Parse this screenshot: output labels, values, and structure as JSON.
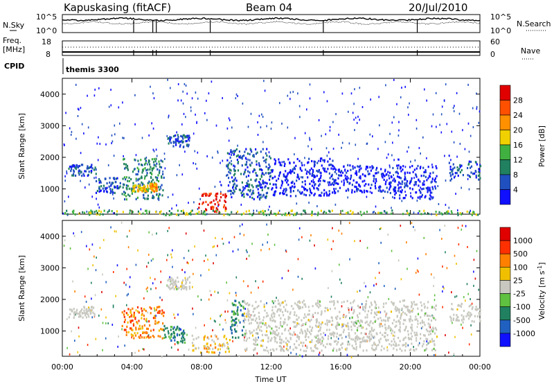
{
  "header": {
    "station": "Kapuskasing (fitACF)",
    "beam": "Beam 04",
    "date": "20/Jul/2010"
  },
  "summary_panels": {
    "nsky": {
      "label": "N.Sky",
      "ticks": [
        "10^5",
        "10^0"
      ]
    },
    "nsearch": {
      "label": "N.Search",
      "ticks": [
        "10^5",
        "10^0"
      ]
    },
    "freq": {
      "label_line1": "Freq.",
      "label_line2": "[MHz]",
      "ticks": [
        "18",
        "8"
      ]
    },
    "nave": {
      "label": "Nave",
      "ticks": [
        "60",
        "0"
      ]
    },
    "cpid": {
      "label": "CPID",
      "program": "themis 3300"
    }
  },
  "colors": {
    "scatter_bg": "#ffffff",
    "ground_scatter": "#c8c8c0",
    "axis": "#000000"
  },
  "chart_data": [
    {
      "type": "heatmap",
      "panel": "power",
      "ylabel": "Slant Range [km]",
      "xlabel": "",
      "ylim": [
        200,
        4500
      ],
      "yticks": [
        "1000",
        "2000",
        "3000",
        "4000"
      ],
      "xlim_hours": [
        0,
        24
      ],
      "colorbar": {
        "label": "Power [dB]",
        "ticks": [
          "4",
          "8",
          "12",
          "16",
          "20",
          "24",
          "28"
        ],
        "colors": [
          "#1010ff",
          "#2050c0",
          "#208060",
          "#40b040",
          "#f0d000",
          "#ff9000",
          "#ff5000",
          "#e00000"
        ]
      },
      "echo_regions": [
        {
          "t0": 0.3,
          "t1": 1.9,
          "r0": 1450,
          "r1": 1800,
          "level": 1
        },
        {
          "t0": 1.9,
          "t1": 3.3,
          "r0": 900,
          "r1": 1400,
          "level": 1
        },
        {
          "t0": 3.4,
          "t1": 5.8,
          "r0": 700,
          "r1": 2000,
          "level": 2
        },
        {
          "t0": 4.0,
          "t1": 4.9,
          "r0": 950,
          "r1": 1150,
          "level": 4
        },
        {
          "t0": 5.0,
          "t1": 5.4,
          "r0": 950,
          "r1": 1200,
          "level": 5
        },
        {
          "t0": 6.0,
          "t1": 7.3,
          "r0": 2350,
          "r1": 2750,
          "level": 1
        },
        {
          "t0": 7.8,
          "t1": 9.4,
          "r0": 300,
          "r1": 900,
          "level": 7
        },
        {
          "t0": 9.4,
          "t1": 12.0,
          "r0": 700,
          "r1": 2300,
          "level": 1
        },
        {
          "t0": 12.0,
          "t1": 15.5,
          "r0": 800,
          "r1": 2000,
          "level": 0
        },
        {
          "t0": 15.5,
          "t1": 19.0,
          "r0": 900,
          "r1": 1800,
          "level": 0
        },
        {
          "t0": 19.0,
          "t1": 21.5,
          "r0": 700,
          "r1": 1800,
          "level": 0
        },
        {
          "t0": 22.2,
          "t1": 24.0,
          "r0": 1300,
          "r1": 1900,
          "level": 1
        },
        {
          "t0": 0.0,
          "t1": 24.0,
          "r0": 200,
          "r1": 350,
          "level": 3
        }
      ]
    },
    {
      "type": "heatmap",
      "panel": "velocity",
      "ylabel": "Slant Range [km]",
      "xlabel": "Time UT",
      "ylim": [
        200,
        4500
      ],
      "yticks": [
        "1000",
        "2000",
        "3000",
        "4000"
      ],
      "xticks": [
        "00:00",
        "04:00",
        "08:00",
        "12:00",
        "16:00",
        "20:00",
        "00:00"
      ],
      "xlim_hours": [
        0,
        24
      ],
      "colorbar": {
        "label": "Velocity [m s",
        "label_superscript": "-1",
        "label_close": "]",
        "ticks": [
          "1000",
          "500",
          "100",
          "25",
          "-25",
          "-100",
          "-500",
          "-1000"
        ],
        "colors": [
          "#1010ff",
          "#2060c0",
          "#208060",
          "#60c040",
          "#c8c8c0",
          "#f0c000",
          "#ff8000",
          "#ff3000",
          "#e00000"
        ]
      },
      "echo_regions": [
        {
          "t0": 0.3,
          "t1": 1.9,
          "r0": 1450,
          "r1": 1800,
          "level": 4
        },
        {
          "t0": 3.4,
          "t1": 5.8,
          "r0": 800,
          "r1": 1800,
          "level": 6
        },
        {
          "t0": 5.8,
          "t1": 7.0,
          "r0": 650,
          "r1": 1200,
          "level": 2
        },
        {
          "t0": 6.0,
          "t1": 7.3,
          "r0": 2350,
          "r1": 2750,
          "level": 4
        },
        {
          "t0": 7.4,
          "t1": 9.6,
          "r0": 350,
          "r1": 900,
          "level": 5
        },
        {
          "t0": 9.6,
          "t1": 10.4,
          "r0": 800,
          "r1": 2000,
          "level": 2
        },
        {
          "t0": 10.4,
          "t1": 21.5,
          "r0": 400,
          "r1": 2000,
          "level": 4
        },
        {
          "t0": 22.2,
          "t1": 24.0,
          "r0": 1300,
          "r1": 1900,
          "level": 4
        }
      ]
    }
  ]
}
